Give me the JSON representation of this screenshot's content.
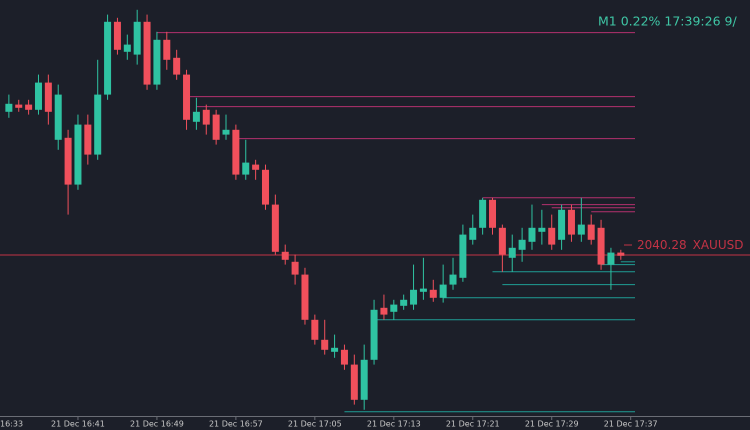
{
  "chart_data": {
    "type": "candlestick",
    "info": "M1 0.22% 17:39:26 9/",
    "symbol": "XAUUSD",
    "last_price": 2040.28,
    "last_price_color": "#c23345",
    "up_color": "#2fc3a2",
    "down_color": "#f0505c",
    "ylim": [
      2036,
      2046.5
    ],
    "categories": [
      "16:33",
      null,
      null,
      null,
      null,
      null,
      null,
      null,
      "21 Dec 16:41",
      null,
      null,
      null,
      null,
      null,
      null,
      null,
      "21 Dec 16:49",
      null,
      null,
      null,
      null,
      null,
      null,
      null,
      "21 Dec 16:57",
      null,
      null,
      null,
      null,
      null,
      null,
      null,
      "21 Dec 17:05",
      null,
      null,
      null,
      null,
      null,
      null,
      null,
      "21 Dec 17:13",
      null,
      null,
      null,
      null,
      null,
      null,
      null,
      "21 Dec 17:21",
      null,
      null,
      null,
      null,
      null,
      null,
      null,
      "21 Dec 17:29",
      null,
      null,
      null,
      null,
      null,
      null,
      null,
      "21 Dec 17:37"
    ],
    "open": [
      null,
      2043.86,
      2044.04,
      2044.04,
      2043.91,
      2044.59,
      2043.16,
      2043.21,
      2042.04,
      2043.54,
      2042.79,
      2044.29,
      2046.11,
      2045.36,
      2045.29,
      2046.11,
      2044.54,
      2045.66,
      2045.21,
      2044.79,
      2043.61,
      2043.91,
      2043.79,
      2043.29,
      2043.41,
      2042.29,
      2042.54,
      2042.41,
      2041.54,
      2040.36,
      2040.11,
      2039.79,
      2038.66,
      2038.16,
      2037.86,
      2037.91,
      2037.54,
      2036.66,
      2037.66,
      2038.96,
      2038.86,
      2039.01,
      2039.04,
      2039.36,
      2039.41,
      2039.21,
      2039.54,
      2039.71,
      2040.66,
      2040.96,
      2041.66,
      2040.96,
      2040.21,
      2040.41,
      2040.61,
      2040.86,
      2040.96,
      2040.66,
      2041.41,
      2040.79,
      2041.04,
      2040.96,
      2040.04,
      2040.34,
      null
    ],
    "high": [
      null,
      2044.29,
      2044.16,
      2044.16,
      2044.79,
      2044.79,
      2044.54,
      2043.41,
      2043.79,
      2043.79,
      2045.16,
      2046.29,
      2046.21,
      2045.79,
      2046.41,
      2046.29,
      2045.86,
      2045.86,
      2045.41,
      2044.91,
      2044.21,
      2044.04,
      2043.91,
      2043.79,
      2043.54,
      2043.16,
      2042.66,
      2042.54,
      2041.79,
      2040.54,
      2040.29,
      2039.96,
      2038.79,
      2038.66,
      2038.29,
      2038.04,
      2037.79,
      2038.04,
      2039.16,
      2039.29,
      2039.16,
      2039.29,
      2040.04,
      2040.21,
      2039.66,
      2040.04,
      2040.21,
      2041.04,
      2041.29,
      2041.71,
      2041.71,
      2041.04,
      2040.79,
      2040.96,
      2041.54,
      2041.41,
      2041.29,
      2041.54,
      2041.54,
      2041.71,
      2041.29,
      2041.16,
      2040.46,
      2040.41,
      null
    ],
    "low": [
      null,
      2043.71,
      2043.86,
      2043.79,
      2043.79,
      2043.54,
      2042.91,
      2041.29,
      2041.91,
      2042.54,
      2042.66,
      2044.16,
      2045.29,
      2045.16,
      2045.04,
      2044.41,
      2044.41,
      2044.91,
      2044.66,
      2043.41,
      2043.41,
      2043.29,
      2043.04,
      2043.16,
      2042.16,
      2042.16,
      2042.16,
      2041.41,
      2040.29,
      2040.04,
      2039.54,
      2038.54,
      2038.04,
      2037.79,
      2037.71,
      2037.41,
      2036.54,
      2036.41,
      2037.54,
      2038.66,
      2038.66,
      2038.91,
      2038.91,
      2039.16,
      2039.11,
      2039.09,
      2039.41,
      2039.61,
      2040.54,
      2040.79,
      2040.79,
      2039.86,
      2039.86,
      2040.11,
      2040.41,
      2040.54,
      2040.41,
      2040.41,
      2040.61,
      2040.61,
      2040.54,
      2039.91,
      2039.41,
      2040.16,
      null
    ],
    "close": [
      null,
      2044.06,
      2043.96,
      2043.91,
      2044.59,
      2043.86,
      2044.29,
      2042.04,
      2043.54,
      2042.79,
      2044.29,
      2046.11,
      2045.41,
      2045.54,
      2046.11,
      2044.54,
      2045.66,
      2045.16,
      2044.79,
      2043.66,
      2043.86,
      2043.54,
      2043.16,
      2043.41,
      2042.29,
      2042.59,
      2042.41,
      2041.54,
      2040.36,
      2040.16,
      2039.79,
      2038.66,
      2038.16,
      2037.91,
      2037.96,
      2037.54,
      2036.66,
      2037.66,
      2038.91,
      2038.79,
      2039.04,
      2039.16,
      2039.41,
      2039.44,
      2039.21,
      2039.54,
      2039.79,
      2040.79,
      2040.96,
      2041.66,
      2040.96,
      2040.29,
      2040.46,
      2040.66,
      2040.96,
      2040.96,
      2040.54,
      2041.41,
      2040.79,
      2041.04,
      2040.66,
      2040.04,
      2040.34,
      2040.26,
      null
    ],
    "resistance_color": "#b3306e",
    "resistance_levels": [
      {
        "value": 2045.84,
        "from": 16
      },
      {
        "value": 2044.24,
        "from": 19
      },
      {
        "value": 2043.99,
        "from": 20
      },
      {
        "value": 2043.19,
        "from": 24
      },
      {
        "value": 2041.71,
        "from": 49
      },
      {
        "value": 2041.54,
        "from": 55
      },
      {
        "value": 2041.46,
        "from": 56
      },
      {
        "value": 2041.36,
        "from": 60
      }
    ],
    "support_color": "#1f9e95",
    "support_levels": [
      {
        "value": 2040.11,
        "from": 63
      },
      {
        "value": 2040.04,
        "from": 61
      },
      {
        "value": 2039.86,
        "from": 50
      },
      {
        "value": 2039.54,
        "from": 51
      },
      {
        "value": 2039.21,
        "from": 45
      },
      {
        "value": 2038.66,
        "from": 38
      },
      {
        "value": 2036.36,
        "from": 35
      }
    ]
  }
}
